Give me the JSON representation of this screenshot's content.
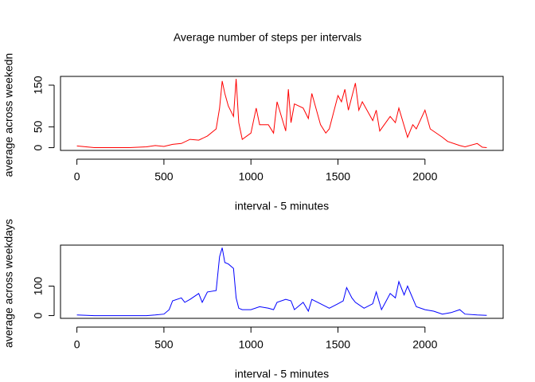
{
  "chart_data": [
    {
      "type": "line",
      "title": "Average number of steps per intervals",
      "xlabel": "interval - 5 minutes",
      "ylabel": "average across weekedn",
      "x": [
        0,
        100,
        200,
        300,
        400,
        450,
        500,
        550,
        600,
        650,
        700,
        750,
        800,
        820,
        835,
        850,
        870,
        900,
        915,
        930,
        950,
        1000,
        1030,
        1050,
        1100,
        1130,
        1150,
        1200,
        1215,
        1230,
        1250,
        1300,
        1330,
        1350,
        1400,
        1430,
        1450,
        1500,
        1520,
        1540,
        1560,
        1600,
        1620,
        1640,
        1700,
        1720,
        1740,
        1800,
        1830,
        1850,
        1900,
        1930,
        1950,
        2000,
        2030,
        2100,
        2130,
        2200,
        2230,
        2300,
        2330,
        2355
      ],
      "values": [
        4,
        0,
        0,
        0,
        2,
        5,
        3,
        8,
        10,
        20,
        18,
        28,
        45,
        95,
        160,
        130,
        100,
        75,
        165,
        60,
        20,
        35,
        95,
        55,
        55,
        35,
        110,
        40,
        140,
        60,
        105,
        95,
        70,
        130,
        55,
        35,
        45,
        125,
        110,
        140,
        90,
        155,
        90,
        110,
        65,
        90,
        40,
        75,
        60,
        95,
        25,
        55,
        45,
        90,
        45,
        25,
        15,
        5,
        2,
        10,
        1,
        0
      ],
      "color": "#ff0000",
      "xlim": [
        -94.2,
        2449.2
      ],
      "ylim": [
        -6.6,
        171
      ],
      "xticks": [
        0,
        500,
        1000,
        1500,
        2000
      ],
      "yticks": [
        0,
        50,
        150
      ]
    },
    {
      "type": "line",
      "xlabel": "interval - 5 minutes",
      "ylabel": "average across weekdays",
      "x": [
        0,
        100,
        200,
        300,
        400,
        450,
        500,
        530,
        550,
        600,
        620,
        650,
        700,
        720,
        750,
        800,
        820,
        835,
        850,
        870,
        900,
        915,
        930,
        950,
        1000,
        1050,
        1100,
        1130,
        1150,
        1200,
        1230,
        1250,
        1300,
        1330,
        1350,
        1400,
        1450,
        1500,
        1530,
        1550,
        1580,
        1600,
        1650,
        1700,
        1720,
        1750,
        1800,
        1830,
        1850,
        1880,
        1900,
        1950,
        2000,
        2050,
        2100,
        2150,
        2200,
        2230,
        2300,
        2355
      ],
      "values": [
        2,
        0,
        0,
        0,
        0,
        2,
        5,
        20,
        50,
        60,
        45,
        55,
        75,
        45,
        80,
        85,
        200,
        230,
        180,
        175,
        160,
        60,
        25,
        20,
        20,
        30,
        25,
        20,
        45,
        55,
        50,
        20,
        45,
        15,
        55,
        40,
        25,
        40,
        50,
        95,
        60,
        45,
        25,
        40,
        80,
        20,
        75,
        60,
        115,
        70,
        100,
        30,
        20,
        15,
        5,
        10,
        20,
        5,
        2,
        1
      ],
      "color": "#0000ff",
      "xlim": [
        -94.2,
        2449.2
      ],
      "ylim": [
        -9.3,
        239
      ],
      "xticks": [
        0,
        500,
        1000,
        1500,
        2000
      ],
      "yticks": [
        0,
        100
      ]
    }
  ]
}
